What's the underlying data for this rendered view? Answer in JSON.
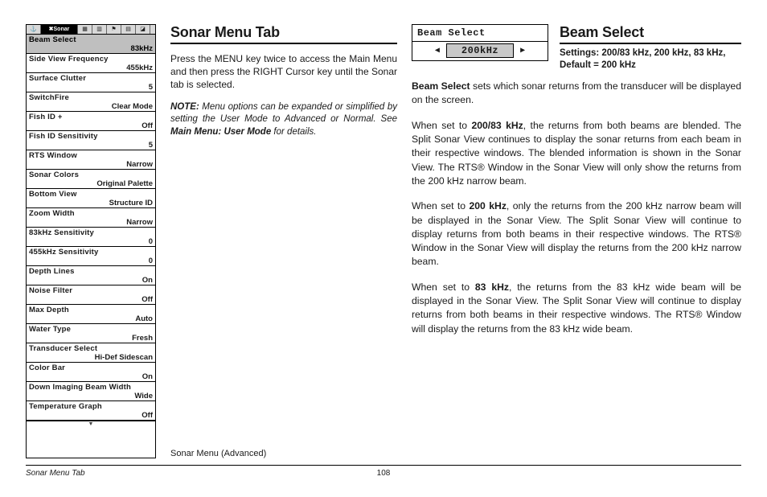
{
  "device_menu": {
    "tabs": [
      "⚓",
      "✖Sonar",
      "▦",
      "▥",
      "⚑",
      "▤",
      "◪"
    ],
    "selected_tab_index": 1,
    "items": [
      {
        "label": "Beam Select",
        "value": "83kHz",
        "selected": true
      },
      {
        "label": "Side View Frequency",
        "value": "455kHz"
      },
      {
        "label": "Surface Clutter",
        "value": "5"
      },
      {
        "label": "SwitchFire",
        "value": "Clear Mode"
      },
      {
        "label": "Fish ID +",
        "value": "Off"
      },
      {
        "label": "Fish ID Sensitivity",
        "value": "5"
      },
      {
        "label": "RTS Window",
        "value": "Narrow"
      },
      {
        "label": "Sonar Colors",
        "value": "Original Palette"
      },
      {
        "label": "Bottom View",
        "value": "Structure ID"
      },
      {
        "label": "Zoom Width",
        "value": "Narrow"
      },
      {
        "label": "83kHz Sensitivity",
        "value": "0"
      },
      {
        "label": "455kHz Sensitivity",
        "value": "0"
      },
      {
        "label": "Depth Lines",
        "value": "On"
      },
      {
        "label": "Noise Filter",
        "value": "Off"
      },
      {
        "label": "Max Depth",
        "value": "Auto"
      },
      {
        "label": "Water Type",
        "value": "Fresh"
      },
      {
        "label": "Transducer Select",
        "value": "Hi-Def Sidescan"
      },
      {
        "label": "Color Bar",
        "value": "On"
      },
      {
        "label": "Down Imaging Beam Width",
        "value": "Wide"
      },
      {
        "label": "Temperature Graph",
        "value": "Off"
      }
    ]
  },
  "mid": {
    "heading": "Sonar Menu Tab",
    "p1": "Press the MENU key twice to access the Main Menu and then press the RIGHT Cursor key until the Sonar tab is selected.",
    "note_label": "NOTE:",
    "note_body": " Menu options can be expanded or simplified by setting the User Mode to Advanced or Normal. See ",
    "note_em": "Main Menu: User Mode",
    "note_tail": " for details.",
    "caption": "Sonar Menu (Advanced)"
  },
  "right": {
    "widget_label": "Beam Select",
    "widget_value": "200kHz",
    "heading": "Beam Select",
    "settings": "Settings: 200/83 kHz, 200 kHz, 83 kHz, Default = 200 kHz",
    "p1a": "Beam Select",
    "p1b": " sets which sonar returns from the transducer will be displayed on the screen.",
    "p2a": "When set to ",
    "p2b": "200/83 kHz",
    "p2c": ", the returns from both beams are blended. The Split Sonar View continues to display the sonar returns from each beam in their respective windows. The blended information is shown in the Sonar View. The RTS® Window in the Sonar View will only show the returns from the 200 kHz narrow beam.",
    "p3a": "When set to ",
    "p3b": "200 kHz",
    "p3c": ", only the returns from the 200 kHz narrow beam will be displayed in the Sonar View. The Split Sonar View will continue to display returns from both beams in their respective windows. The RTS® Window in the Sonar View will display the returns from the 200 kHz narrow beam.",
    "p4a": "When set to ",
    "p4b": "83 kHz",
    "p4c": ", the returns from the 83 kHz wide beam will be displayed in the Sonar View. The Split Sonar View will continue to display returns from both beams in their respective windows. The RTS® Window will display the returns from the 83 kHz wide beam."
  },
  "footer": {
    "left": "Sonar Menu Tab",
    "page": "108"
  }
}
